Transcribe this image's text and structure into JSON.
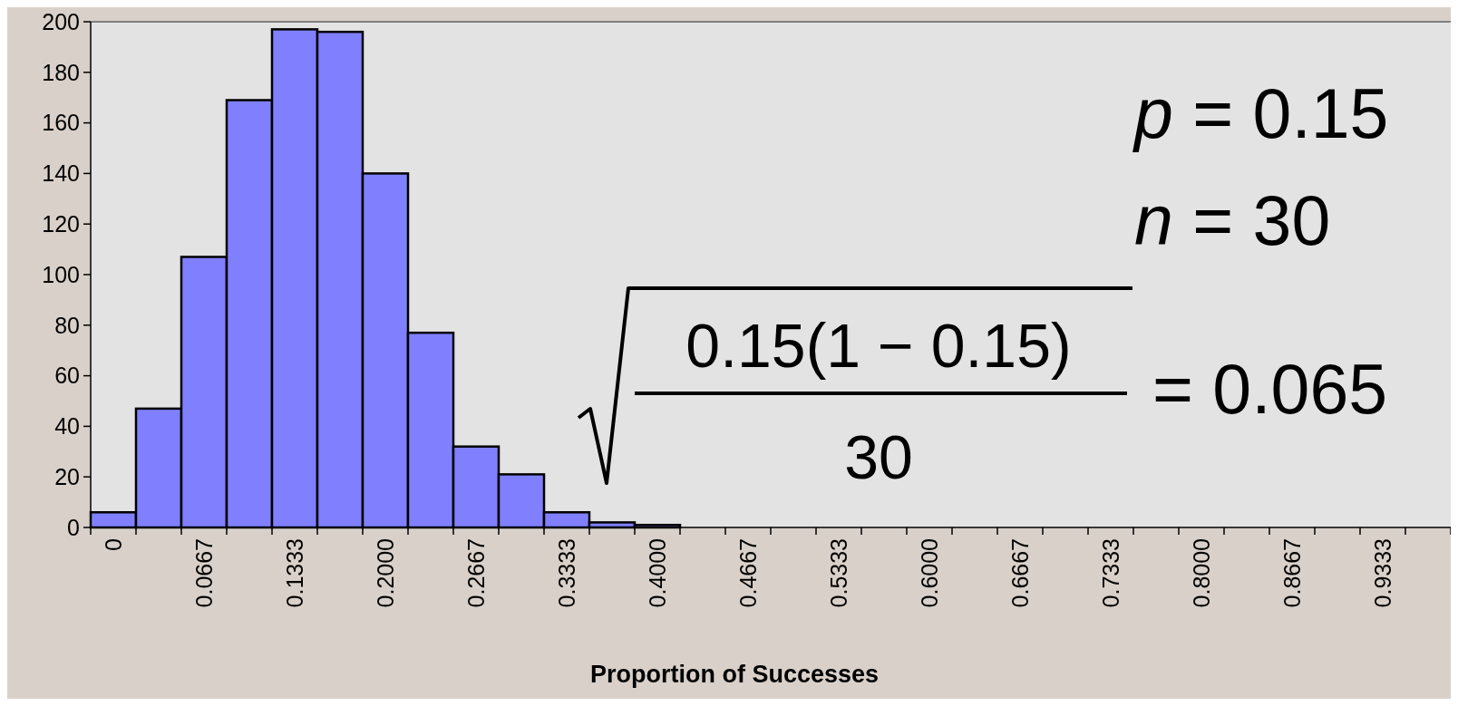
{
  "chart_data": {
    "type": "bar",
    "xlabel": "Proportion of Successes",
    "categories": [
      "0",
      null,
      "0.0667",
      null,
      "0.1333",
      null,
      "0.2000",
      null,
      "0.2667",
      null,
      "0.3333",
      null,
      "0.4000",
      null,
      "0.4667",
      null,
      "0.5333",
      null,
      "0.6000",
      null,
      "0.6667",
      null,
      "0.7333",
      null,
      "0.8000",
      null,
      "0.8667",
      null,
      "0.9333",
      null
    ],
    "values": [
      6,
      47,
      107,
      169,
      197,
      196,
      140,
      77,
      32,
      21,
      6,
      2,
      1,
      0,
      0,
      0,
      0,
      0,
      0,
      0,
      0,
      0,
      0,
      0,
      0,
      0,
      0,
      0,
      0,
      0
    ],
    "color": "#8080ff",
    "ylim": [
      0,
      200
    ],
    "yticks": [
      0,
      20,
      40,
      60,
      80,
      100,
      120,
      140,
      160,
      180,
      200
    ],
    "grid": false,
    "annotations": [
      "p = 0.15",
      "n = 30",
      "0.15(1 − 0.15)",
      "30",
      "= 0.065"
    ]
  }
}
